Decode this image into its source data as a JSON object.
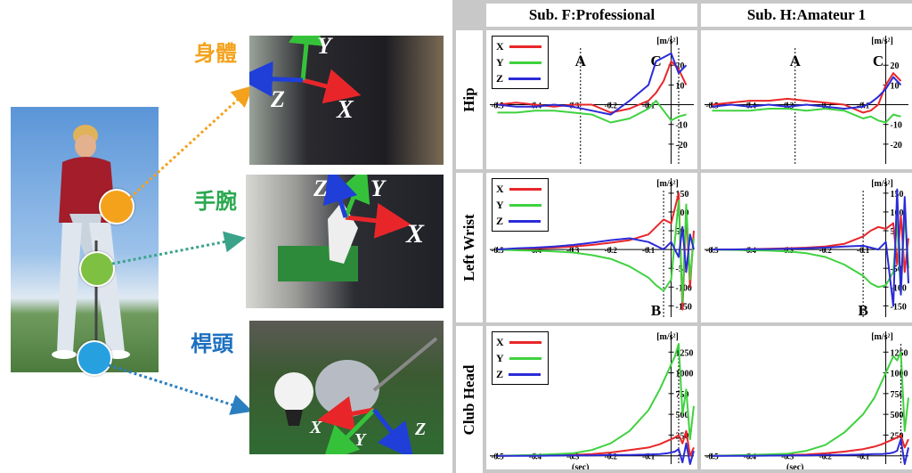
{
  "illustration": {
    "labels": {
      "body": "身體",
      "arm": "手腕",
      "club": "桿頭"
    },
    "axes": {
      "x": "X",
      "y": "Y",
      "z": "Z"
    },
    "colors": {
      "body": "#f4a21c",
      "arm": "#7ec142",
      "club": "#27a0e0",
      "x_arrow": "#e8262a",
      "y_arrow": "#35c23a",
      "z_arrow": "#1f3fd8"
    }
  },
  "columns": [
    "Sub. F:Professional",
    "Sub. H:Amateur 1"
  ],
  "rows": [
    "Hip",
    "Left Wrist",
    "Club Head"
  ],
  "legend": [
    {
      "name": "X",
      "color": "#e8262a"
    },
    {
      "name": "Y",
      "color": "#3fd23f"
    },
    {
      "name": "Z",
      "color": "#2b2bd8"
    }
  ],
  "unit_label": "[m/s²]",
  "x_unit": "(sec)",
  "chart_data": {
    "type": "line",
    "xlabel": "(sec)",
    "x_ticks": [
      "-0.5",
      "-0.4",
      "-0.3",
      "-0.2",
      "-0.1"
    ],
    "xlim": [
      -0.52,
      0.02
    ],
    "panels": [
      {
        "row": "Hip",
        "column": "Sub. F:Professional",
        "ylim": [
          -30,
          35
        ],
        "y_ticks": [
          "20",
          "10",
          "-10",
          "-20"
        ],
        "annotations": [
          {
            "text": "A",
            "x": -0.28
          },
          {
            "text": "C",
            "x": -0.08
          }
        ],
        "vlines": [
          -0.28,
          -0.02
        ],
        "x": [
          -0.5,
          -0.45,
          -0.4,
          -0.35,
          -0.3,
          -0.25,
          -0.2,
          -0.15,
          -0.1,
          -0.08,
          -0.06,
          -0.04,
          -0.02,
          0.0
        ],
        "series": [
          {
            "name": "X",
            "values": [
              0,
              1,
              0,
              -1,
              0,
              0,
              -4,
              -2,
              2,
              6,
              12,
              22,
              18,
              10
            ]
          },
          {
            "name": "Y",
            "values": [
              -4,
              -4,
              -3,
              -3,
              -4,
              -5,
              -9,
              -7,
              -2,
              2,
              -3,
              -8,
              -6,
              -5
            ]
          },
          {
            "name": "Z",
            "values": [
              0,
              -1,
              -1,
              0,
              -1,
              -3,
              -5,
              2,
              10,
              22,
              24,
              26,
              16,
              20
            ]
          }
        ]
      },
      {
        "row": "Hip",
        "column": "Sub. H:Amateur 1",
        "ylim": [
          -30,
          35
        ],
        "y_ticks": [
          "20",
          "10",
          "-10",
          "-20"
        ],
        "annotations": [
          {
            "text": "A",
            "x": -0.28
          },
          {
            "text": "C",
            "x": -0.06
          }
        ],
        "vlines": [
          -0.28
        ],
        "x": [
          -0.5,
          -0.45,
          -0.4,
          -0.35,
          -0.3,
          -0.25,
          -0.2,
          -0.15,
          -0.1,
          -0.08,
          -0.06,
          -0.04,
          -0.02,
          0.0
        ],
        "series": [
          {
            "name": "X",
            "values": [
              0,
              1,
              2,
              2,
              3,
              2,
              1,
              0,
              -4,
              -3,
              0,
              10,
              16,
              12
            ]
          },
          {
            "name": "Y",
            "values": [
              -3,
              -3,
              -3,
              -2,
              -2,
              -3,
              -2,
              -3,
              -7,
              -6,
              -8,
              -9,
              -5,
              -6
            ]
          },
          {
            "name": "Z",
            "values": [
              -1,
              0,
              -1,
              0,
              -1,
              0,
              -1,
              -2,
              -1,
              1,
              4,
              8,
              14,
              10
            ]
          }
        ]
      },
      {
        "row": "Left Wrist",
        "column": "Sub. F:Professional",
        "ylim": [
          -180,
          190
        ],
        "y_ticks": [
          "150",
          "100",
          "50",
          "-50",
          "-100",
          "-150"
        ],
        "annotations": [
          {
            "text": "B",
            "x": -0.08
          }
        ],
        "vlines": [
          -0.06
        ],
        "x": [
          -0.5,
          -0.45,
          -0.4,
          -0.35,
          -0.3,
          -0.25,
          -0.2,
          -0.15,
          -0.1,
          -0.08,
          -0.06,
          -0.04,
          -0.02,
          -0.01,
          0.0,
          0.01,
          0.02
        ],
        "series": [
          {
            "name": "X",
            "values": [
              0,
              2,
              3,
              5,
              8,
              12,
              18,
              25,
              40,
              60,
              80,
              70,
              150,
              -160,
              100,
              -100,
              50
            ]
          },
          {
            "name": "Y",
            "values": [
              0,
              -2,
              -3,
              -5,
              -8,
              -15,
              -25,
              -45,
              -75,
              -95,
              -110,
              -80,
              130,
              -140,
              120,
              -80,
              30
            ]
          },
          {
            "name": "Z",
            "values": [
              0,
              3,
              5,
              8,
              12,
              18,
              25,
              30,
              20,
              10,
              0,
              20,
              -20,
              60,
              -60,
              40,
              0
            ]
          }
        ]
      },
      {
        "row": "Left Wrist",
        "column": "Sub. H:Amateur 1",
        "ylim": [
          -180,
          190
        ],
        "y_ticks": [
          "150",
          "100",
          "50",
          "-50",
          "-100",
          "-150"
        ],
        "annotations": [
          {
            "text": "B",
            "x": -0.1
          }
        ],
        "vlines": [
          -0.1
        ],
        "x": [
          -0.5,
          -0.45,
          -0.4,
          -0.35,
          -0.3,
          -0.25,
          -0.2,
          -0.15,
          -0.1,
          -0.08,
          -0.06,
          -0.04,
          -0.02,
          -0.01,
          0.0,
          0.01,
          0.02
        ],
        "series": [
          {
            "name": "X",
            "values": [
              0,
              0,
              1,
              2,
              3,
              5,
              8,
              15,
              35,
              50,
              60,
              55,
              70,
              -40,
              90,
              -60,
              30
            ]
          },
          {
            "name": "Y",
            "values": [
              0,
              -1,
              -2,
              -3,
              -5,
              -10,
              -20,
              -40,
              -70,
              -90,
              -100,
              -95,
              -60,
              80,
              -120,
              100,
              -50
            ]
          },
          {
            "name": "Z",
            "values": [
              0,
              0,
              1,
              1,
              2,
              3,
              5,
              8,
              10,
              5,
              0,
              20,
              -150,
              160,
              -120,
              140,
              -90
            ]
          }
        ]
      },
      {
        "row": "Club Head",
        "column": "Sub. F:Professional",
        "ylim": [
          -100,
          1500
        ],
        "y_ticks": [
          "1250",
          "1000",
          "750",
          "500",
          "250"
        ],
        "annotations": [],
        "vlines": [
          -0.02
        ],
        "x": [
          -0.5,
          -0.4,
          -0.3,
          -0.25,
          -0.2,
          -0.15,
          -0.1,
          -0.07,
          -0.05,
          -0.03,
          -0.02,
          -0.01,
          0.0,
          0.01,
          0.02
        ],
        "series": [
          {
            "name": "X",
            "values": [
              0,
              5,
              10,
              20,
              40,
              70,
              100,
              140,
              180,
              220,
              250,
              150,
              300,
              0,
              100
            ]
          },
          {
            "name": "Y",
            "values": [
              0,
              10,
              30,
              70,
              150,
              300,
              550,
              800,
              1000,
              1200,
              1350,
              500,
              800,
              200,
              600
            ]
          },
          {
            "name": "Z",
            "values": [
              0,
              0,
              5,
              5,
              10,
              10,
              15,
              20,
              30,
              50,
              80,
              -80,
              150,
              -100,
              60
            ]
          }
        ]
      },
      {
        "row": "Club Head",
        "column": "Sub. H:Amateur 1",
        "ylim": [
          -100,
          1500
        ],
        "y_ticks": [
          "1250",
          "1000",
          "750",
          "500",
          "250"
        ],
        "annotations": [],
        "vlines": [
          0.0
        ],
        "x": [
          -0.5,
          -0.4,
          -0.3,
          -0.25,
          -0.2,
          -0.15,
          -0.1,
          -0.07,
          -0.05,
          -0.03,
          -0.02,
          -0.01,
          0.0,
          0.01,
          0.02
        ],
        "series": [
          {
            "name": "X",
            "values": [
              0,
              5,
              10,
              15,
              30,
              50,
              80,
              110,
              140,
              180,
              200,
              220,
              250,
              100,
              200
            ]
          },
          {
            "name": "Y",
            "values": [
              0,
              10,
              25,
              60,
              130,
              280,
              500,
              700,
              900,
              1100,
              1200,
              1150,
              1250,
              300,
              700
            ]
          },
          {
            "name": "Z",
            "values": [
              0,
              0,
              5,
              5,
              10,
              10,
              15,
              20,
              20,
              30,
              40,
              60,
              200,
              -100,
              100
            ]
          }
        ]
      }
    ]
  }
}
